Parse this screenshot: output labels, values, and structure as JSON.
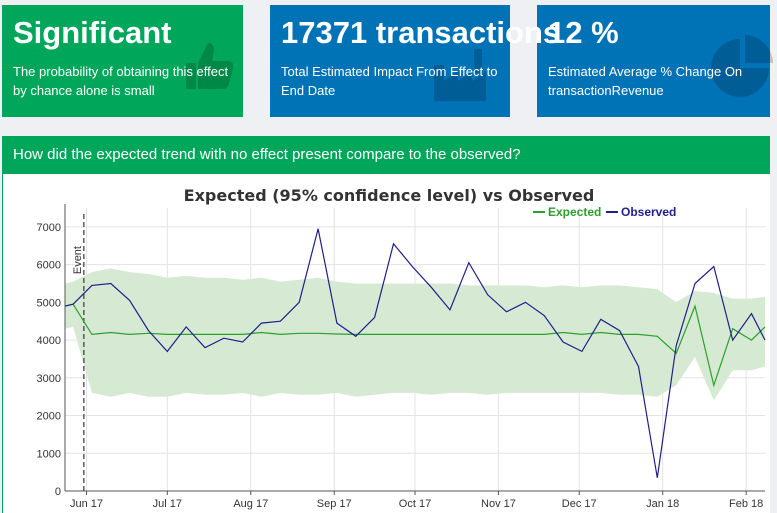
{
  "cards": [
    {
      "title": "Significant",
      "subtitle": "The probability of obtaining this effect by chance alone is small",
      "icon": "thumbs-up-icon"
    },
    {
      "title": "17371 transactions",
      "subtitle": "Total Estimated Impact From Effect to End Date",
      "icon": "industry-icon"
    },
    {
      "title": "12 %",
      "subtitle": "Estimated Average % Change On transactionRevenue",
      "icon": "pie-chart-icon"
    }
  ],
  "panel": {
    "header": "How did the expected trend with no effect present compare to the observed?"
  },
  "colors": {
    "green": "#00a65a",
    "blue": "#0073b7",
    "expected": "#2ca02c",
    "observed": "#1f1f8c",
    "band": "#d6ead3"
  },
  "chart_data": {
    "type": "line",
    "title": "Expected (95% confidence level) vs Observed",
    "xlabel": "",
    "ylabel": "",
    "ylim": [
      0,
      7500
    ],
    "y_ticks": [
      0,
      1000,
      2000,
      3000,
      4000,
      5000,
      6000,
      7000
    ],
    "x_ticks": [
      {
        "label": "Jun 17",
        "date": "2017-06-01"
      },
      {
        "label": "Jul 17",
        "date": "2017-07-01"
      },
      {
        "label": "Aug 17",
        "date": "2017-08-01"
      },
      {
        "label": "Sep 17",
        "date": "2017-09-01"
      },
      {
        "label": "Oct 17",
        "date": "2017-10-01"
      },
      {
        "label": "Nov 17",
        "date": "2017-11-01"
      },
      {
        "label": "Dec 17",
        "date": "2017-12-01"
      },
      {
        "label": "Jan 18",
        "date": "2018-01-01"
      },
      {
        "label": "Feb 18",
        "date": "2018-02-01"
      }
    ],
    "xlim": [
      "2017-05-24",
      "2018-02-08"
    ],
    "event": {
      "label": "Event",
      "date": "2017-05-31"
    },
    "legend": {
      "placement": "top-right",
      "entries": [
        "Expected",
        "Observed"
      ]
    },
    "x": [
      "2017-05-24",
      "2017-05-27",
      "2017-06-03",
      "2017-06-10",
      "2017-06-17",
      "2017-06-24",
      "2017-07-01",
      "2017-07-08",
      "2017-07-15",
      "2017-07-22",
      "2017-07-29",
      "2017-08-05",
      "2017-08-12",
      "2017-08-19",
      "2017-08-26",
      "2017-09-02",
      "2017-09-09",
      "2017-09-16",
      "2017-09-23",
      "2017-09-30",
      "2017-10-07",
      "2017-10-14",
      "2017-10-21",
      "2017-10-28",
      "2017-11-04",
      "2017-11-11",
      "2017-11-18",
      "2017-11-25",
      "2017-12-02",
      "2017-12-09",
      "2017-12-16",
      "2017-12-23",
      "2017-12-30",
      "2018-01-06",
      "2018-01-13",
      "2018-01-20",
      "2018-01-27",
      "2018-02-03",
      "2018-02-08"
    ],
    "series": [
      {
        "name": "Expected",
        "values": [
          4900,
          4950,
          4150,
          4200,
          4150,
          4180,
          4150,
          4150,
          4150,
          4150,
          4150,
          4200,
          4150,
          4180,
          4180,
          4160,
          4150,
          4150,
          4150,
          4150,
          4150,
          4150,
          4150,
          4150,
          4150,
          4150,
          4150,
          4200,
          4150,
          4200,
          4150,
          4150,
          4100,
          3650,
          4900,
          2800,
          4300,
          4000,
          4350
        ]
      },
      {
        "name": "Observed",
        "values": [
          4900,
          4950,
          5450,
          5500,
          5050,
          4250,
          3700,
          4350,
          3800,
          4050,
          3950,
          4450,
          4500,
          5000,
          6950,
          4450,
          4100,
          4600,
          6550,
          5950,
          5400,
          4800,
          6050,
          5200,
          4750,
          5000,
          4650,
          3950,
          3700,
          4550,
          4250,
          3300,
          350,
          3850,
          5500,
          5950,
          4000,
          4700,
          4000
        ]
      }
    ],
    "band_upper": [
      5500,
      5550,
      5800,
      5900,
      5800,
      5750,
      5650,
      5700,
      5650,
      5650,
      5600,
      5650,
      5550,
      5600,
      5650,
      5550,
      5500,
      5500,
      5500,
      5500,
      5500,
      5500,
      5450,
      5450,
      5450,
      5450,
      5400,
      5450,
      5400,
      5450,
      5450,
      5400,
      5350,
      5000,
      5300,
      5250,
      5100,
      5100,
      5150
    ],
    "band_lower": [
      4300,
      4350,
      2600,
      2500,
      2600,
      2500,
      2500,
      2600,
      2550,
      2550,
      2600,
      2500,
      2600,
      2550,
      2550,
      2600,
      2500,
      2550,
      2600,
      2600,
      2550,
      2600,
      2600,
      2550,
      2600,
      2600,
      2600,
      2600,
      2600,
      2600,
      2550,
      2550,
      2500,
      2800,
      3550,
      2400,
      3200,
      3200,
      3300
    ]
  }
}
